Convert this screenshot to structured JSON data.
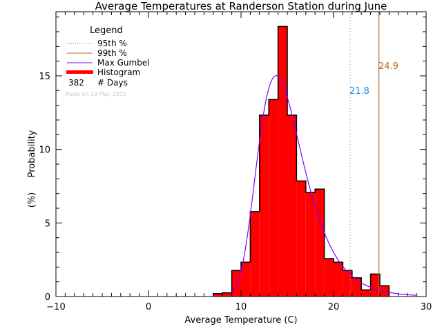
{
  "chart_data": {
    "type": "bar",
    "title": "Average Temperatures at Randerson Station during June",
    "xlabel": "Average Temperature (C)",
    "ylabel": "Probability",
    "ylabel_units": "(%)",
    "xlim": [
      -10,
      30
    ],
    "ylim": [
      0,
      19.36
    ],
    "x_ticks": [
      -10,
      0,
      10,
      20,
      30
    ],
    "y_ticks": [
      0,
      5,
      10,
      15
    ],
    "histogram": {
      "name": "Histogram",
      "bin_edges": [
        7,
        8,
        9,
        10,
        11,
        12,
        13,
        14,
        15,
        16,
        17,
        18,
        19,
        20,
        21,
        22,
        23,
        24,
        25,
        26
      ],
      "values": [
        0.2,
        0.25,
        1.77,
        2.33,
        5.77,
        12.33,
        13.39,
        18.36,
        12.33,
        7.86,
        7.07,
        7.3,
        2.58,
        2.33,
        1.77,
        1.27,
        0.45,
        1.53,
        0.73
      ]
    },
    "gumbel": {
      "name": "Max Gumbel",
      "mu": 13.8,
      "beta": 2.45,
      "x_range": [
        9,
        29
      ]
    },
    "percentiles": [
      {
        "name": "95th %",
        "value": 21.8,
        "label": "21.8",
        "color": "#1e88e5"
      },
      {
        "name": "99th %",
        "value": 24.9,
        "label": "24.9",
        "color": "#b5651d"
      }
    ],
    "legend": {
      "title": "Legend",
      "entries": [
        "95th %",
        "99th %",
        "Max Gumbel",
        "Histogram"
      ],
      "days_count": "382",
      "days_label": "# Days",
      "position": "top-left"
    },
    "watermark": "Made on 29 May 2025",
    "colors": {
      "bar": "#ff0000",
      "gumbel": "#8000ff",
      "p95": "#1e88e5",
      "p99": "#b5651d"
    }
  }
}
